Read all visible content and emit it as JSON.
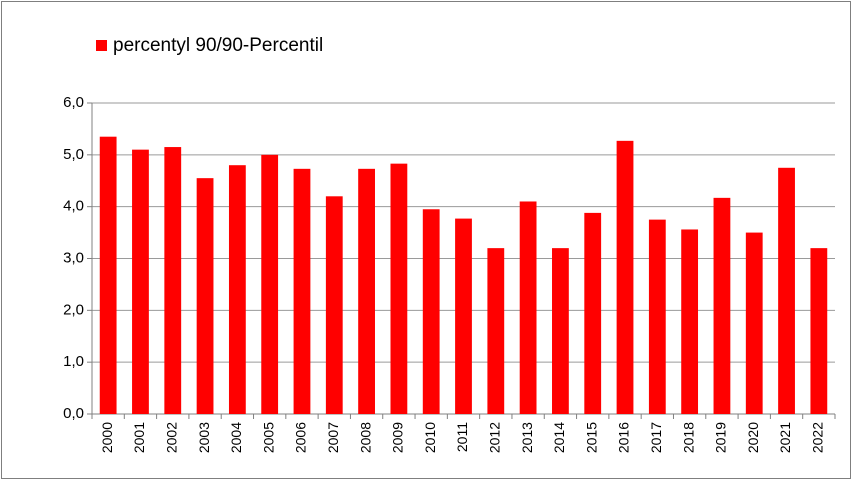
{
  "chart_data": {
    "type": "bar",
    "categories": [
      "2000",
      "2001",
      "2002",
      "2003",
      "2004",
      "2005",
      "2006",
      "2007",
      "2008",
      "2009",
      "2010",
      "2011",
      "2012",
      "2013",
      "2014",
      "2015",
      "2016",
      "2017",
      "2018",
      "2019",
      "2020",
      "2021",
      "2022"
    ],
    "series": [
      {
        "name": "percentyl 90/90-Percentil",
        "color": "#ff0000",
        "values": [
          5.35,
          5.1,
          5.15,
          4.55,
          4.8,
          5.0,
          4.73,
          4.2,
          4.73,
          4.83,
          3.95,
          3.77,
          3.2,
          4.1,
          3.2,
          3.88,
          5.27,
          3.75,
          3.56,
          4.17,
          3.5,
          4.75,
          3.2
        ]
      }
    ],
    "ylim": [
      0,
      6
    ],
    "yticks": [
      {
        "value": 0,
        "label": "0,0"
      },
      {
        "value": 1,
        "label": "1,0"
      },
      {
        "value": 2,
        "label": "2,0"
      },
      {
        "value": 3,
        "label": "3,0"
      },
      {
        "value": 4,
        "label": "4,0"
      },
      {
        "value": 5,
        "label": "5,0"
      },
      {
        "value": 6,
        "label": "6,0"
      }
    ],
    "grid": true,
    "legend": "top-left"
  }
}
